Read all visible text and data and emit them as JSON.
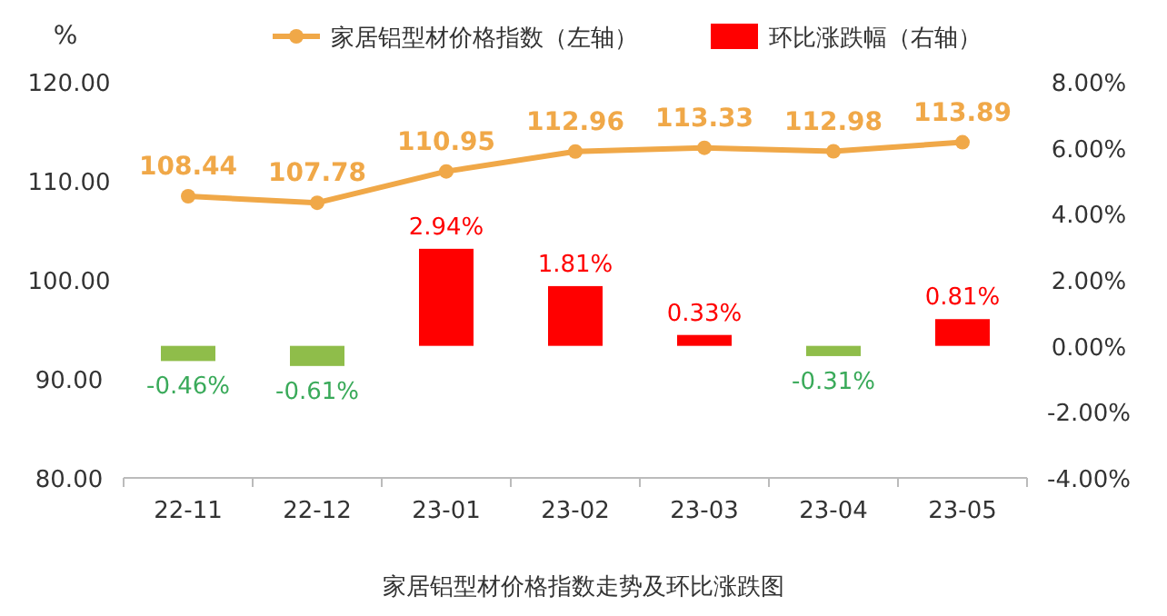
{
  "chart_data": {
    "type": "bar",
    "title": "家居铝型材价格指数走势及环比涨跌图",
    "ylabel": "%",
    "categories": [
      "22-11",
      "22-12",
      "23-01",
      "23-02",
      "23-03",
      "23-04",
      "23-05"
    ],
    "series": [
      {
        "name": "家居铝型材价格指数（左轴）",
        "type": "line",
        "color": "#f0a848",
        "marker": "circle",
        "values": [
          108.44,
          107.78,
          110.95,
          112.96,
          113.33,
          112.98,
          113.89
        ],
        "value_labels": [
          "108.44",
          "107.78",
          "110.95",
          "112.96",
          "113.33",
          "112.98",
          "113.89"
        ]
      },
      {
        "name": "环比涨跌幅（右轴）",
        "axis": "y2",
        "color": "#ff0000",
        "colors": [
          "#8fbd4a",
          "#8fbd4a",
          "#ff0000",
          "#ff0000",
          "#ff0000",
          "#8fbd4a",
          "#ff0000"
        ],
        "values": [
          -0.46,
          -0.61,
          2.94,
          1.81,
          0.33,
          -0.31,
          0.81
        ],
        "value_labels": [
          "-0.46%",
          "-0.61%",
          "2.94%",
          "1.81%",
          "0.33%",
          "-0.31%",
          "0.81%"
        ]
      }
    ],
    "ylim": [
      80,
      120
    ],
    "yticks": [
      {
        "value": 80,
        "label": "80.00"
      },
      {
        "value": 90,
        "label": "90.00"
      },
      {
        "value": 100,
        "label": "100.00"
      },
      {
        "value": 110,
        "label": "110.00"
      },
      {
        "value": 120,
        "label": "120.00"
      }
    ],
    "y2lim": [
      -4,
      8
    ],
    "y2ticks": [
      {
        "value": -4,
        "label": "-4.00%"
      },
      {
        "value": -2,
        "label": "-2.00%"
      },
      {
        "value": 0,
        "label": "0.00%"
      },
      {
        "value": 2,
        "label": "2.00%"
      },
      {
        "value": 4,
        "label": "4.00%"
      },
      {
        "value": 6,
        "label": "6.00%"
      },
      {
        "value": 8,
        "label": "8.00%"
      }
    ],
    "legend": "top",
    "grid": false
  }
}
